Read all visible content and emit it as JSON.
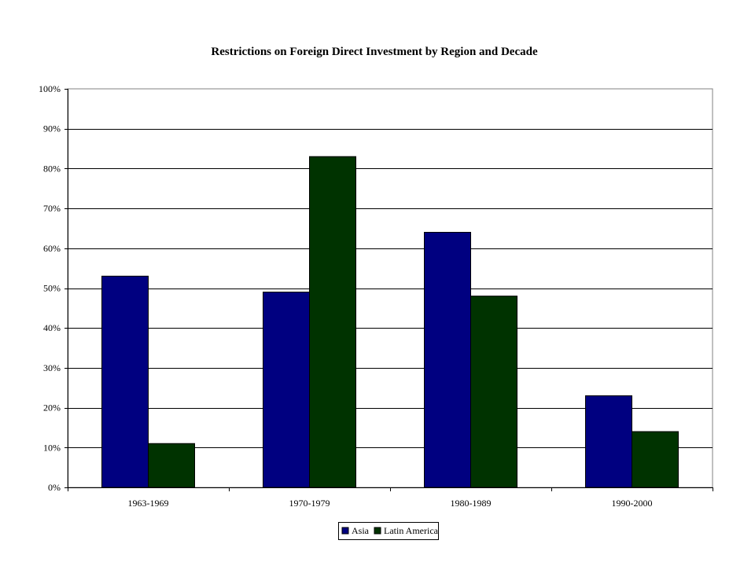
{
  "chart_data": {
    "type": "bar",
    "title": "Restrictions on Foreign Direct Investment by Region and Decade",
    "xlabel": "",
    "ylabel": "",
    "categories": [
      "1963-1969",
      "1970-1979",
      "1980-1989",
      "1990-2000"
    ],
    "series": [
      {
        "name": "Asia",
        "values": [
          0.53,
          0.49,
          0.64,
          0.23
        ],
        "color": "#000080"
      },
      {
        "name": "Latin America",
        "values": [
          0.11,
          0.83,
          0.48,
          0.14
        ],
        "color": "#003300"
      }
    ],
    "ylim": [
      0,
      1
    ],
    "yticks": [
      0,
      0.1,
      0.2,
      0.3,
      0.4,
      0.5,
      0.6,
      0.7,
      0.8,
      0.9,
      1.0
    ],
    "ytick_labels": [
      "0%",
      "10%",
      "20%",
      "30%",
      "40%",
      "50%",
      "60%",
      "70%",
      "80%",
      "90%",
      "100%"
    ],
    "grid": true,
    "legend_position": "bottom"
  }
}
